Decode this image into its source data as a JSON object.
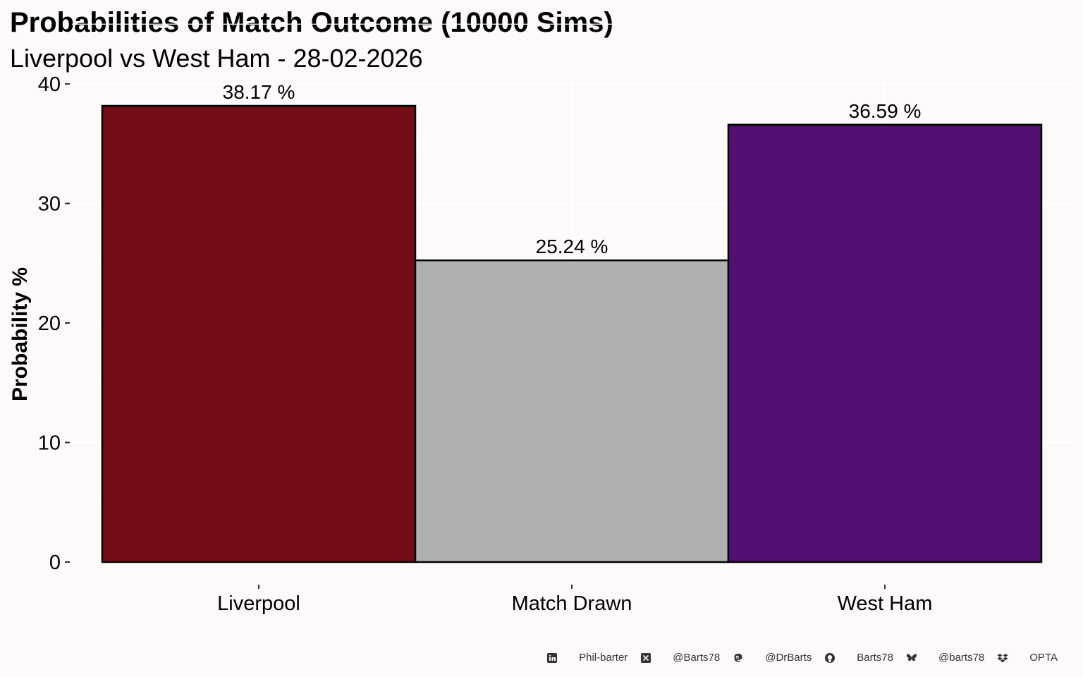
{
  "chart_data": {
    "type": "bar",
    "title": "Probabilities of Match Outcome (10000 Sims)",
    "subtitle": "Liverpool vs West Ham - 28-02-2026",
    "ylabel": "Probability %",
    "xlabel": "",
    "categories": [
      "Liverpool",
      "Match Drawn",
      "West Ham"
    ],
    "values": [
      38.17,
      25.24,
      36.59
    ],
    "data_labels": [
      "38.17  %",
      "25.24  %",
      "36.59  %"
    ],
    "colors": [
      "#730e17",
      "#b0b0b0",
      "#530f72"
    ],
    "ylim": [
      0,
      40
    ],
    "yticks": [
      0,
      10,
      20,
      30,
      40
    ],
    "ytick_labels": [
      "0",
      "10",
      "20",
      "30",
      "40"
    ],
    "grid": true,
    "legend": "none"
  },
  "footer": {
    "items": [
      {
        "icon": "linkedin-icon",
        "text": "Phil-barter"
      },
      {
        "icon": "x-twitter-icon",
        "text": "@Barts78"
      },
      {
        "icon": "mastodon-icon",
        "text": "@DrBarts"
      },
      {
        "icon": "github-icon",
        "text": "Barts78"
      },
      {
        "icon": "bluesky-icon",
        "text": "@barts78"
      },
      {
        "icon": "dropbox-icon",
        "text": "OPTA"
      }
    ]
  }
}
